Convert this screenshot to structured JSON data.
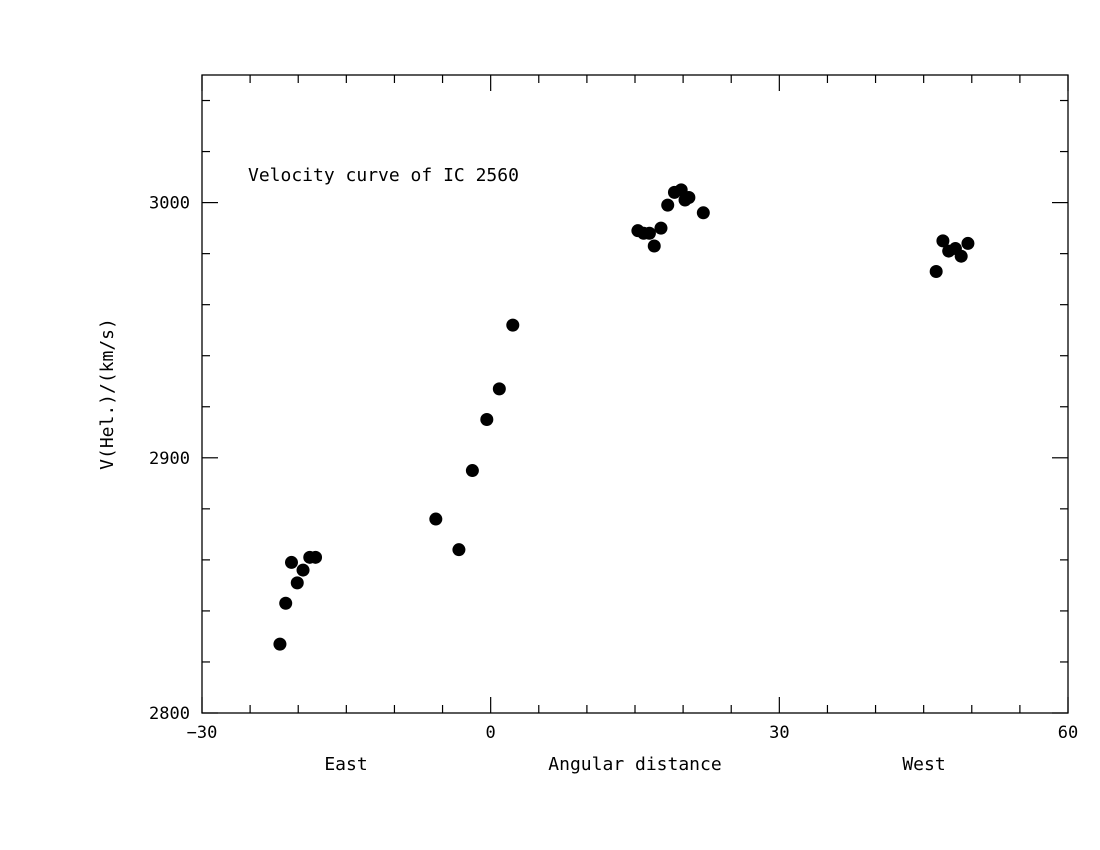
{
  "chart_data": {
    "type": "scatter",
    "title": "Velocity curve of IC 2560",
    "xlabel": "Angular distance",
    "xlabel_left": "East",
    "xlabel_right": "West",
    "ylabel": "V(Hel.)/(km/s)",
    "xlim": [
      -30,
      60
    ],
    "ylim": [
      2800,
      3050
    ],
    "x_major_ticks": [
      -30,
      0,
      30,
      60
    ],
    "x_tick_labels": [
      "−30",
      "0",
      "30",
      "60"
    ],
    "x_minor_step": 5,
    "y_major_ticks": [
      2800,
      2900,
      3000
    ],
    "y_tick_labels": [
      "2800",
      "2900",
      "3000"
    ],
    "y_minor_step": 20,
    "grid": false,
    "legend": "none",
    "marker_color": "#000000",
    "points": [
      {
        "x": -21.9,
        "y": 2827
      },
      {
        "x": -21.3,
        "y": 2843
      },
      {
        "x": -20.7,
        "y": 2859
      },
      {
        "x": -20.1,
        "y": 2851
      },
      {
        "x": -19.5,
        "y": 2856
      },
      {
        "x": -18.8,
        "y": 2861
      },
      {
        "x": -18.2,
        "y": 2861
      },
      {
        "x": -5.7,
        "y": 2876
      },
      {
        "x": -3.3,
        "y": 2864
      },
      {
        "x": -1.9,
        "y": 2895
      },
      {
        "x": -0.4,
        "y": 2915
      },
      {
        "x": 0.9,
        "y": 2927
      },
      {
        "x": 2.3,
        "y": 2952
      },
      {
        "x": 15.3,
        "y": 2989
      },
      {
        "x": 15.9,
        "y": 2988
      },
      {
        "x": 16.5,
        "y": 2988
      },
      {
        "x": 17.0,
        "y": 2983
      },
      {
        "x": 17.7,
        "y": 2990
      },
      {
        "x": 18.4,
        "y": 2999
      },
      {
        "x": 19.1,
        "y": 3004
      },
      {
        "x": 19.8,
        "y": 3005
      },
      {
        "x": 20.2,
        "y": 3001
      },
      {
        "x": 20.6,
        "y": 3002
      },
      {
        "x": 22.1,
        "y": 2996
      },
      {
        "x": 46.3,
        "y": 2973
      },
      {
        "x": 47.0,
        "y": 2985
      },
      {
        "x": 47.6,
        "y": 2981
      },
      {
        "x": 48.3,
        "y": 2982
      },
      {
        "x": 48.9,
        "y": 2979
      },
      {
        "x": 49.6,
        "y": 2984
      }
    ]
  }
}
